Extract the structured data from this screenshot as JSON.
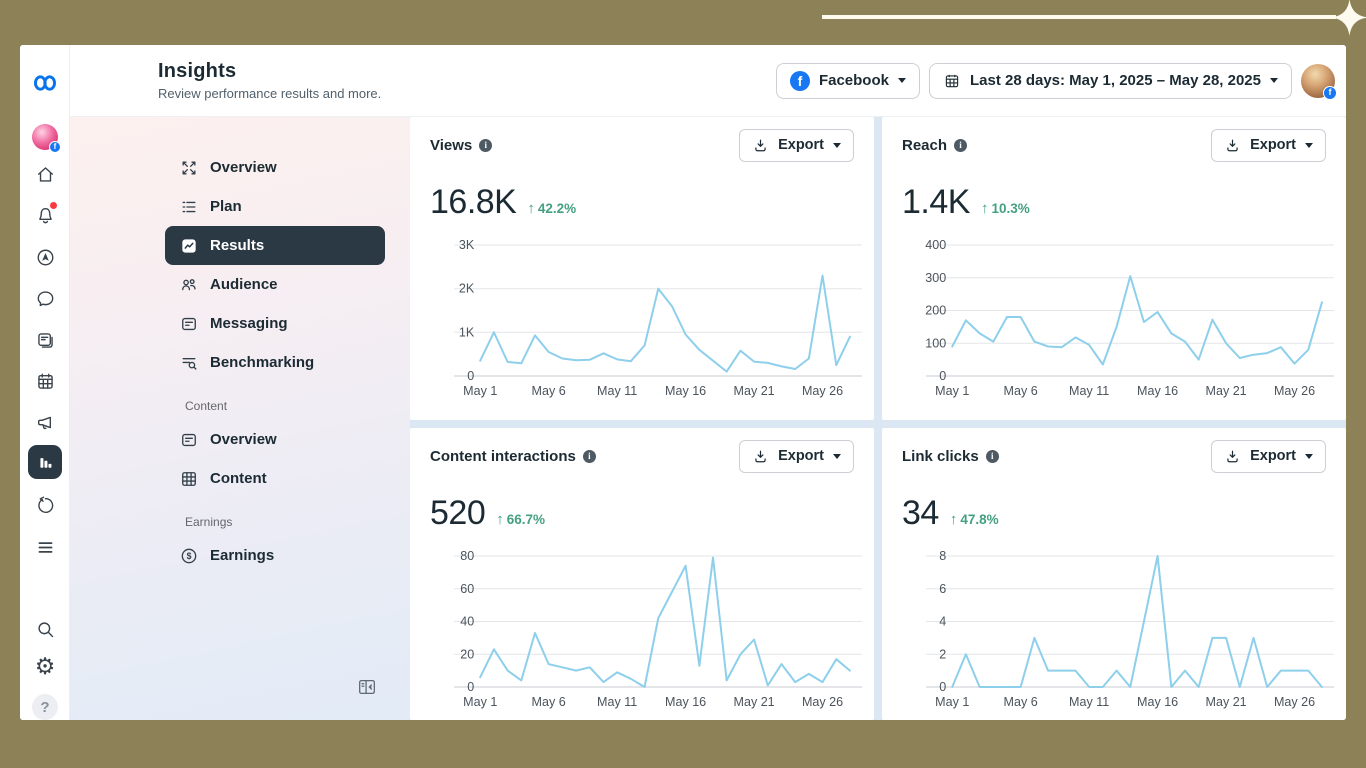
{
  "colors": {
    "frame_olive": "#8d8157",
    "facebook_blue": "#1877f2",
    "meta_logo_blue": "#0873eb",
    "chart_line": "#8ecfeb",
    "positive_green": "#44a081",
    "selected_nav_bg": "#2b3945",
    "notification_dot": "#fa383e",
    "content_background": "#dbe7f3"
  },
  "glyphs": {
    "up_arrow": "↑",
    "info": "i",
    "help": "?",
    "fb_letter": "f"
  },
  "icon_rail": {
    "icons": [
      "meta-logo",
      "business-avatar",
      "home",
      "notifications",
      "ads-manager",
      "chat",
      "posts",
      "planner",
      "promotions",
      "insights-selected",
      "activity-history",
      "all-tools",
      "search",
      "settings",
      "help"
    ]
  },
  "header": {
    "title": "Insights",
    "subtitle": "Review performance results and more.",
    "platform_selector": {
      "label": "Facebook"
    },
    "date_range": {
      "label": "Last 28 days: May 1, 2025 – May 28, 2025"
    }
  },
  "nav": {
    "items": [
      {
        "label": "Overview",
        "selected": false
      },
      {
        "label": "Plan",
        "selected": false
      },
      {
        "label": "Results",
        "selected": true
      },
      {
        "label": "Audience",
        "selected": false
      },
      {
        "label": "Messaging",
        "selected": false
      },
      {
        "label": "Benchmarking",
        "selected": false
      }
    ],
    "content_section_label": "Content",
    "content_items": [
      {
        "label": "Overview"
      },
      {
        "label": "Content"
      }
    ],
    "earnings_section_label": "Earnings",
    "earnings_items": [
      {
        "label": "Earnings"
      }
    ]
  },
  "cards": [
    {
      "title": "Views",
      "value": "16.8K",
      "delta": "42.2%",
      "delta_direction": "up",
      "export_label": "Export"
    },
    {
      "title": "Reach",
      "value": "1.4K",
      "delta": "10.3%",
      "delta_direction": "up",
      "export_label": "Export"
    },
    {
      "title": "Content interactions",
      "value": "520",
      "delta": "66.7%",
      "delta_direction": "up",
      "export_label": "Export"
    },
    {
      "title": "Link clicks",
      "value": "34",
      "delta": "47.8%",
      "delta_direction": "up",
      "export_label": "Export"
    }
  ],
  "chart_data": [
    {
      "type": "line",
      "title": "Views",
      "total": "16.8K",
      "change": "+42.2%",
      "x_description": "Daily values, May 1 – May 28, 2025",
      "values": [
        350,
        1000,
        320,
        290,
        930,
        550,
        400,
        360,
        370,
        520,
        380,
        340,
        700,
        2000,
        1600,
        950,
        600,
        350,
        100,
        580,
        330,
        300,
        220,
        160,
        400,
        2300,
        250,
        900
      ],
      "ylim": [
        0,
        3000
      ],
      "yticks": [
        0,
        1000,
        2000,
        3000
      ],
      "ytick_labels": [
        "0",
        "1K",
        "2K",
        "3K"
      ],
      "xticks": [
        1,
        6,
        11,
        16,
        21,
        26
      ],
      "xtick_labels": [
        "May 1",
        "May 6",
        "May 11",
        "May 16",
        "May 21",
        "May 26"
      ],
      "grid": "horizontal",
      "legend": "none"
    },
    {
      "type": "line",
      "title": "Reach",
      "total": "1.4K",
      "change": "+10.3%",
      "x_description": "Daily values, May 1 – May 28, 2025",
      "values": [
        90,
        170,
        130,
        105,
        180,
        180,
        105,
        90,
        88,
        118,
        95,
        35,
        150,
        305,
        165,
        195,
        130,
        105,
        50,
        172,
        100,
        55,
        65,
        70,
        88,
        38,
        80,
        225
      ],
      "ylim": [
        0,
        400
      ],
      "yticks": [
        0,
        100,
        200,
        300,
        400
      ],
      "ytick_labels": [
        "0",
        "100",
        "200",
        "300",
        "400"
      ],
      "xticks": [
        1,
        6,
        11,
        16,
        21,
        26
      ],
      "xtick_labels": [
        "May 1",
        "May 6",
        "May 11",
        "May 16",
        "May 21",
        "May 26"
      ],
      "grid": "horizontal",
      "legend": "none"
    },
    {
      "type": "line",
      "title": "Content interactions",
      "total": "520",
      "change": "+66.7%",
      "x_description": "Daily values, May 1 – May 28, 2025",
      "values": [
        6,
        23,
        10,
        4,
        33,
        14,
        12,
        10,
        12,
        3,
        9,
        5,
        0,
        42,
        58,
        74,
        13,
        79,
        4,
        20,
        29,
        1,
        14,
        3,
        8,
        3,
        17,
        10
      ],
      "ylim": [
        0,
        80
      ],
      "yticks": [
        0,
        20,
        40,
        60,
        80
      ],
      "ytick_labels": [
        "0",
        "20",
        "40",
        "60",
        "80"
      ],
      "xticks": [
        1,
        6,
        11,
        16,
        21,
        26
      ],
      "xtick_labels": [
        "May 1",
        "May 6",
        "May 11",
        "May 16",
        "May 21",
        "May 26"
      ],
      "grid": "horizontal",
      "legend": "none"
    },
    {
      "type": "line",
      "title": "Link clicks",
      "total": "34",
      "change": "+47.8%",
      "x_description": "Daily values, May 1 – May 28, 2025",
      "values": [
        0,
        2,
        0,
        0,
        0,
        0,
        3,
        1,
        1,
        1,
        0,
        0,
        1,
        0,
        4,
        8,
        0,
        1,
        0,
        3,
        3,
        0,
        3,
        0,
        1,
        1,
        1,
        0
      ],
      "ylim": [
        0,
        8
      ],
      "yticks": [
        0,
        2,
        4,
        6,
        8
      ],
      "ytick_labels": [
        "0",
        "2",
        "4",
        "6",
        "8"
      ],
      "xticks": [
        1,
        6,
        11,
        16,
        21,
        26
      ],
      "xtick_labels": [
        "May 1",
        "May 6",
        "May 11",
        "May 16",
        "May 21",
        "May 26"
      ],
      "grid": "horizontal",
      "legend": "none"
    }
  ]
}
